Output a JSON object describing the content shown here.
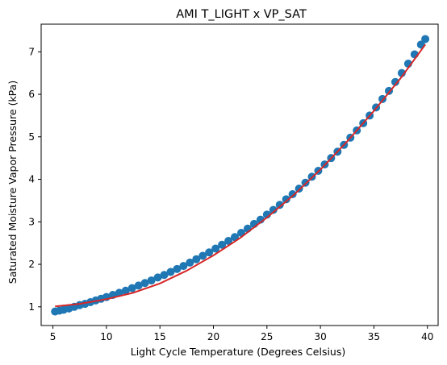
{
  "chart_data": {
    "type": "scatter",
    "title": "AMI T_LIGHT x VP_SAT",
    "xlabel": "Light Cycle Temperature (Degrees Celsius)",
    "ylabel": "Saturated Moisture Vapor Pressure (kPa)",
    "xlim": [
      3.9,
      41.0
    ],
    "ylim": [
      0.56,
      7.65
    ],
    "xticks": [
      5,
      10,
      15,
      20,
      25,
      30,
      35,
      40
    ],
    "xtick_labels": [
      "5",
      "10",
      "15",
      "20",
      "25",
      "30",
      "35",
      "40"
    ],
    "yticks": [
      1,
      2,
      3,
      4,
      5,
      6,
      7
    ],
    "ytick_labels": [
      "1",
      "2",
      "3",
      "4",
      "5",
      "6",
      "7"
    ],
    "grid": false,
    "legend": "none",
    "colors": {
      "points": "#1f77b4",
      "fit_line": "#d62728",
      "axes": "#000000"
    },
    "series": [
      {
        "kind": "points",
        "x": [
          5.2,
          5.6,
          6.0,
          6.5,
          7.0,
          7.5,
          8.0,
          8.5,
          9.0,
          9.5,
          10.0,
          10.6,
          11.2,
          11.8,
          12.4,
          13.0,
          13.6,
          14.2,
          14.8,
          15.4,
          16.0,
          16.6,
          17.2,
          17.8,
          18.4,
          19.0,
          19.6,
          20.2,
          20.8,
          21.4,
          22.0,
          22.6,
          23.2,
          23.8,
          24.4,
          25.0,
          25.6,
          26.2,
          26.8,
          27.4,
          28.0,
          28.6,
          29.2,
          29.8,
          30.4,
          31.0,
          31.6,
          32.2,
          32.8,
          33.4,
          34.0,
          34.6,
          35.2,
          35.8,
          36.4,
          37.0,
          37.6,
          38.2,
          38.8,
          39.4,
          39.8
        ],
        "y": [
          0.89,
          0.91,
          0.93,
          0.96,
          1.0,
          1.04,
          1.07,
          1.11,
          1.15,
          1.19,
          1.23,
          1.28,
          1.33,
          1.38,
          1.44,
          1.5,
          1.56,
          1.62,
          1.69,
          1.75,
          1.82,
          1.89,
          1.96,
          2.04,
          2.12,
          2.2,
          2.28,
          2.37,
          2.46,
          2.55,
          2.64,
          2.74,
          2.84,
          2.95,
          3.05,
          3.17,
          3.28,
          3.4,
          3.53,
          3.65,
          3.78,
          3.92,
          4.06,
          4.2,
          4.35,
          4.5,
          4.65,
          4.81,
          4.98,
          5.15,
          5.32,
          5.5,
          5.69,
          5.89,
          6.08,
          6.29,
          6.5,
          6.72,
          6.94,
          7.17,
          7.3
        ]
      },
      {
        "kind": "fit_line",
        "x": [
          5.2,
          7.5,
          10.0,
          12.5,
          15.0,
          17.5,
          20.0,
          22.5,
          25.0,
          27.5,
          30.0,
          32.5,
          35.0,
          37.5,
          39.8
        ],
        "y": [
          1.01,
          1.07,
          1.18,
          1.33,
          1.55,
          1.85,
          2.21,
          2.62,
          3.1,
          3.63,
          4.23,
          4.89,
          5.61,
          6.38,
          7.17
        ]
      }
    ]
  }
}
